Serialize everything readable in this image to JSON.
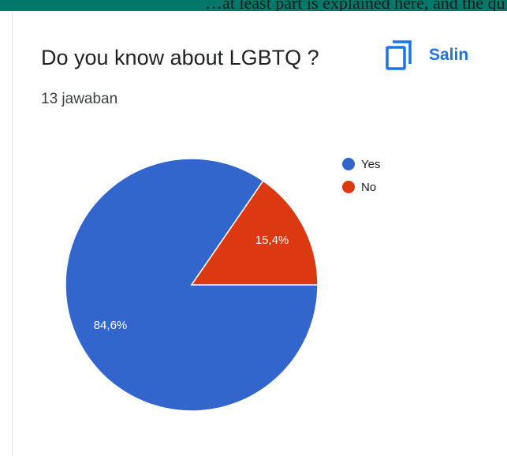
{
  "page": {
    "top_text": "…at least part is explained here, and the questions can…",
    "title": "Do you know about LGBTQ ?",
    "copy_button": {
      "label": "Salin",
      "icon": "copy-icon"
    },
    "response_count": "13 jawaban"
  },
  "chart_data": {
    "type": "pie",
    "title": "",
    "slices": [
      {
        "label": "Yes",
        "value": 84.6,
        "display": "84,6%",
        "color": "#3366cc"
      },
      {
        "label": "No",
        "value": 15.4,
        "display": "15,4%",
        "color": "#dc3912"
      }
    ],
    "legend_position": "top-right"
  },
  "colors": {
    "accent": "#1a73e8",
    "header_bar": "#00796b"
  }
}
